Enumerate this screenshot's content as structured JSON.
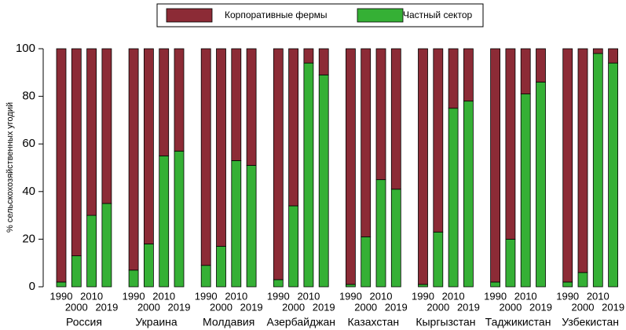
{
  "chart_data": {
    "type": "stacked_bar",
    "y_label": "% сельскохозяйственных угодий",
    "groups": [
      "Россия",
      "Украина",
      "Молдавия",
      "Азербайджан",
      "Казахстан",
      "Кыргызстан",
      "Таджикистан",
      "Узбекистан"
    ],
    "categories": [
      "1990",
      "2000",
      "2010",
      "2019",
      "1990",
      "2000",
      "2010",
      "2019",
      "1990",
      "2000",
      "2010",
      "2019",
      "1990",
      "2000",
      "2010",
      "2019",
      "1990",
      "2000",
      "2010",
      "2019",
      "1990",
      "2000",
      "2010",
      "2019",
      "1990",
      "2000",
      "2010",
      "2019",
      "1990",
      "2000",
      "2010",
      "2019"
    ],
    "series": [
      {
        "name": "Частный сектор",
        "color": "#35b035",
        "values": [
          2,
          13,
          30,
          35,
          7,
          18,
          55,
          57,
          9,
          17,
          53,
          51,
          3,
          34,
          94,
          89,
          1,
          21,
          45,
          41,
          1,
          23,
          75,
          78,
          2,
          20,
          81,
          86,
          2,
          6,
          98,
          94
        ]
      },
      {
        "name": "Корпоративные фермы",
        "color": "#8c2b36",
        "values": [
          98,
          87,
          70,
          65,
          93,
          82,
          45,
          43,
          91,
          83,
          47,
          49,
          97,
          66,
          6,
          11,
          99,
          79,
          55,
          59,
          99,
          77,
          25,
          22,
          98,
          80,
          19,
          14,
          98,
          94,
          2,
          6
        ]
      }
    ],
    "legend_order": [
      1,
      0
    ],
    "ylim": [
      0,
      100
    ],
    "yticks": [
      0,
      20,
      40,
      60,
      80,
      100
    ]
  }
}
